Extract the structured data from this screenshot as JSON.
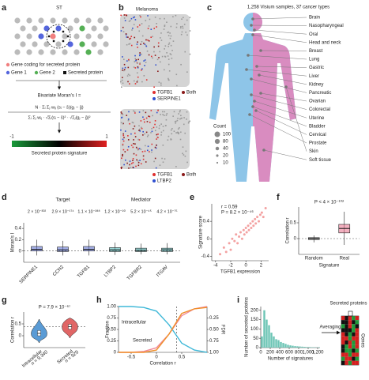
{
  "panels": [
    "a",
    "b",
    "c",
    "d",
    "e",
    "f",
    "g",
    "h",
    "i"
  ],
  "a": {
    "title": "ST",
    "legend": [
      "Gene coding for secreted protein",
      "Gene 1",
      "Gene 2",
      "Secreted protein"
    ],
    "colors": [
      "#f07f7f",
      "#5566dd",
      "#55b055",
      "#111111"
    ],
    "formula_label": "Bivariate Moran's I =",
    "formula_numerator": "N · Σᵢ Σⱼ wᵢⱼ (sᵢ − s̄)(gⱼ − ḡ)",
    "formula_denominator": "Σᵢ Σⱼ wᵢⱼ · √Σᵢ(sᵢ − s̄)² · √Σⱼ(gⱼ − ḡ)²",
    "colorbar_ticks": [
      -1,
      1
    ],
    "colorbar_label": "Secreted protein signature"
  },
  "b": {
    "title": "Melanoma",
    "top_legend": [
      "TGFB1",
      "SERPINE1",
      "Both"
    ],
    "bottom_legend": [
      "TGFB1",
      "LTBP2",
      "Both"
    ],
    "colors": [
      "#e03030",
      "#3050d0",
      "#8b1a1a"
    ]
  },
  "c": {
    "title": "1,258 Visium samples, 37 cancer types",
    "organs": [
      "Brain",
      "Nasopharyngeal",
      "Oral",
      "Head and neck",
      "Breast",
      "Lung",
      "Gastric",
      "Liver",
      "Kidney",
      "Pancreatic",
      "Ovarian",
      "Colorectal",
      "Uterine",
      "Bladder",
      "Cervical",
      "Prostate",
      "Skin",
      "Soft tissue"
    ],
    "count_title": "Count",
    "counts": [
      100,
      80,
      40,
      20,
      10
    ]
  },
  "chart_data": [
    {
      "type": "box",
      "ylabel": "Moran's I",
      "group_labels": [
        "Target",
        "Mediator"
      ],
      "categories": [
        "SERPINE1",
        "CCN2",
        "TGFB1",
        "LTBP2",
        "TGFBR2",
        "ITGAV"
      ],
      "annotations": [
        "2 × 10⁻³⁰²",
        "2.9 × 10⁻¹⁷⁴",
        "1.1 × 10⁻²⁸⁸",
        "1.2 × 10⁻⁹⁰",
        "5.2 × 10⁻⁴⁵",
        "4.2 × 10⁻⁷⁵"
      ],
      "colors": [
        "#5b6fd6",
        "#5b6fd6",
        "#5b6fd6",
        "#45b3b3",
        "#45b3b3",
        "#45b3b3"
      ],
      "boxes": [
        {
          "low": -0.08,
          "q1": 0.0,
          "median": 0.03,
          "q3": 0.08,
          "high": 0.2
        },
        {
          "low": -0.08,
          "q1": -0.01,
          "median": 0.02,
          "q3": 0.07,
          "high": 0.18
        },
        {
          "low": -0.08,
          "q1": 0.0,
          "median": 0.03,
          "q3": 0.08,
          "high": 0.2
        },
        {
          "low": -0.07,
          "q1": -0.01,
          "median": 0.02,
          "q3": 0.06,
          "high": 0.15
        },
        {
          "low": -0.06,
          "q1": -0.01,
          "median": 0.01,
          "q3": 0.05,
          "high": 0.13
        },
        {
          "low": -0.06,
          "q1": -0.01,
          "median": 0.02,
          "q3": 0.05,
          "high": 0.14
        }
      ],
      "ylim": [
        -0.2,
        0.5
      ],
      "yticks": [
        0,
        0.2,
        0.4
      ],
      "hline": 0
    },
    {
      "type": "scatter",
      "xlabel": "TGFB1 expression",
      "ylabel": "Signature score",
      "annotations": [
        "r = 0.59",
        "P = 8.2 × 10⁻⁴⁶"
      ],
      "color": "#f08a8a",
      "x": [
        -3.4,
        -2.9,
        -2.6,
        -2.2,
        -2.0,
        -1.8,
        -1.5,
        -1.3,
        -1.1,
        -0.9,
        -0.7,
        -0.5,
        -0.3,
        -0.2,
        0,
        0.1,
        0.3,
        0.4,
        0.6,
        0.7,
        0.9,
        1.0,
        1.2,
        1.3,
        1.5,
        1.7,
        1.9,
        2.1,
        2.3,
        2.6
      ],
      "y": [
        -0.35,
        -0.2,
        -0.3,
        -0.1,
        -0.25,
        0.0,
        -0.05,
        0.1,
        -0.1,
        0.05,
        0.15,
        0.0,
        0.2,
        0.1,
        0.25,
        0.15,
        0.3,
        0.2,
        0.35,
        0.25,
        0.4,
        0.3,
        0.45,
        0.35,
        0.5,
        0.4,
        0.55,
        0.6,
        0.5,
        0.7
      ],
      "xlim": [
        -4.5,
        3
      ],
      "xticks": [
        -4,
        -2,
        0,
        2
      ],
      "ylim": [
        -0.5,
        0.8
      ],
      "yticks": [
        -0.4,
        0,
        0.4
      ]
    },
    {
      "type": "box",
      "xlabel": "Signature",
      "ylabel": "Correlation r",
      "categories": [
        "Random",
        "Real"
      ],
      "annotations": [
        "P < 4 × 10⁻¹⁰²"
      ],
      "colors": [
        "#888888",
        "#e8708a"
      ],
      "boxes": [
        {
          "low": -0.12,
          "q1": -0.03,
          "median": 0,
          "q3": 0.03,
          "high": 0.1
        },
        {
          "low": -0.2,
          "q1": 0.18,
          "median": 0.32,
          "q3": 0.45,
          "high": 0.85
        }
      ],
      "ylim": [
        -0.5,
        1
      ],
      "yticks": [
        0,
        0.5
      ],
      "hline": 0
    },
    {
      "type": "violin",
      "ylabel": "Correlation r",
      "categories": [
        "Intracellular",
        "Secreted"
      ],
      "sublabels": [
        "n = 9,340",
        "n = 929"
      ],
      "annotations": [
        "P = 7.9 × 10⁻⁶⁷"
      ],
      "colors": [
        "#5a9bd5",
        "#e06666"
      ],
      "boxes": [
        {
          "low": -0.3,
          "q1": 0.0,
          "median": 0.1,
          "q3": 0.22,
          "high": 0.7
        },
        {
          "low": -0.1,
          "q1": 0.28,
          "median": 0.38,
          "q3": 0.48,
          "high": 0.75
        }
      ],
      "ylim": [
        -0.5,
        1
      ],
      "yticks": [
        0,
        0.5
      ],
      "hline": 0.38
    },
    {
      "type": "line",
      "xlabel": "Correlation r",
      "ylabel": "Fraction",
      "y2label": "FDR",
      "x": [
        -0.75,
        -0.5,
        -0.25,
        0,
        0.25,
        0.5,
        0.75,
        1.0
      ],
      "series": [
        {
          "name": "Intracellular",
          "color": "#3fb8d8",
          "values": [
            1,
            1,
            0.98,
            0.9,
            0.6,
            0.2,
            0.05,
            0
          ]
        },
        {
          "name": "Secreted",
          "color": "#f08a9a",
          "values": [
            0,
            0,
            0.02,
            0.1,
            0.4,
            0.8,
            0.95,
            1
          ]
        },
        {
          "name": "FDR",
          "color": "#f0902a",
          "axis": "y2",
          "values": [
            1,
            1,
            1,
            0.95,
            0.6,
            0.15,
            0.05,
            0.02
          ]
        }
      ],
      "xlim": [
        -0.75,
        1
      ],
      "xticks": [
        -0.5,
        0,
        0.5
      ],
      "ylim": [
        0,
        1
      ],
      "yticks": [
        0,
        0.25,
        {
          "value": 0.5,
          "label": "0.50"
        },
        0.75,
        {
          "value": 1,
          "label": "1.00"
        }
      ],
      "y2lim": [
        1,
        0
      ],
      "y2ticks": [
        0.25,
        {
          "value": 0.5,
          "label": "0.50"
        },
        0.75,
        {
          "value": 1,
          "label": "1.00"
        }
      ],
      "vline": 0.4
    },
    {
      "type": "histogram",
      "xlabel": "Number of signatures",
      "ylabel": "Number of secreted proteins",
      "color": "#6cc5b5",
      "bins": [
        0,
        50,
        100,
        150,
        200,
        250,
        300,
        350,
        400,
        450,
        500,
        550,
        600,
        650,
        700,
        750,
        800,
        850,
        900,
        950,
        1000,
        1050,
        1100,
        1150,
        1200,
        1250
      ],
      "counts": [
        60,
        200,
        150,
        120,
        80,
        60,
        45,
        40,
        30,
        25,
        20,
        15,
        12,
        10,
        8,
        7,
        6,
        5,
        4,
        3,
        3,
        2,
        2,
        1,
        2
      ],
      "xlim": [
        0,
        1250
      ],
      "xticks": [
        0,
        200,
        400,
        600,
        800,
        {
          "value": 1000,
          "label": "1,000"
        },
        {
          "value": 1200,
          "label": "1,200"
        }
      ],
      "ylim": [
        0,
        220
      ],
      "yticks": [
        0,
        50,
        100,
        150,
        200
      ],
      "arrow_label": "Averaging",
      "heatmap_title": "Secreted proteins",
      "heatmap_ylabel": "Genes"
    }
  ]
}
